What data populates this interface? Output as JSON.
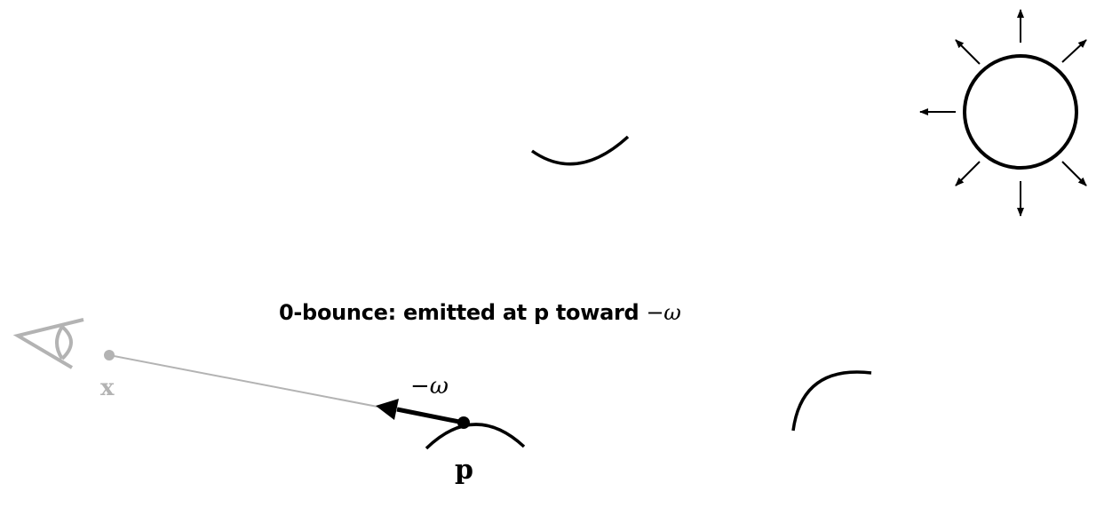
{
  "caption": {
    "text": "0-bounce: emitted at p toward ",
    "math": "−ω"
  },
  "labels": {
    "omega": "−ω",
    "point": "p",
    "camera": "x"
  },
  "colors": {
    "ink": "#000000",
    "faded": "#b3b3b3"
  },
  "icons": {
    "light": "sun-icon",
    "camera": "eye-icon"
  }
}
